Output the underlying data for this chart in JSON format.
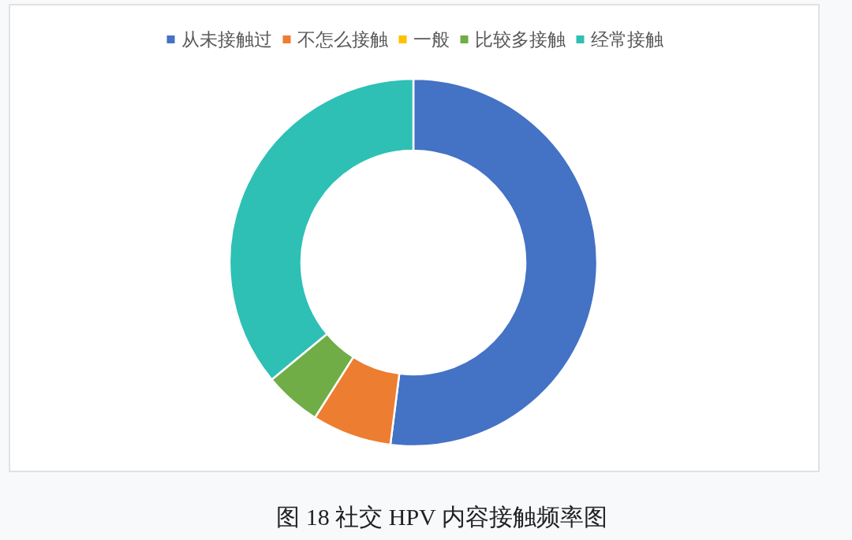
{
  "chart_data": {
    "type": "donut",
    "title": "图 18 社交 HPV 内容接触频率图",
    "categories": [
      "从未接触过",
      "不怎么接触",
      "一般",
      "比较多接触",
      "经常接触"
    ],
    "values": [
      52,
      7,
      0,
      5,
      36
    ],
    "colors": [
      "#4472c4",
      "#ed7d31",
      "#ffc000",
      "#70ad47",
      "#2ec0b4"
    ],
    "legend": "top"
  }
}
